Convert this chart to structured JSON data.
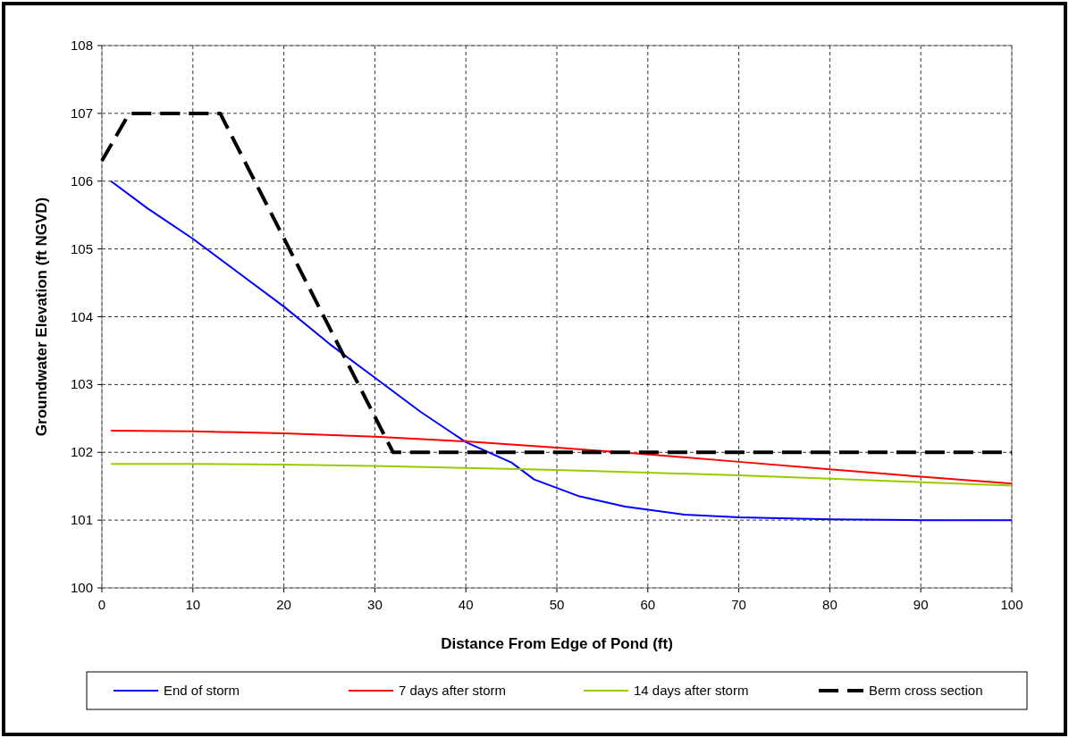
{
  "chart_data": {
    "type": "line",
    "xlabel": "Distance From Edge of Pond (ft)",
    "ylabel": "Groundwater Elevation (ft NGVD)",
    "xlim": [
      0,
      100
    ],
    "xticks": [
      0,
      10,
      20,
      30,
      40,
      50,
      60,
      70,
      80,
      90,
      100
    ],
    "ylim": [
      100,
      108
    ],
    "yticks": [
      100,
      101,
      102,
      103,
      104,
      105,
      106,
      107,
      108
    ],
    "grid": true,
    "legend": "bottom",
    "marker": "none",
    "series": [
      {
        "name": "End of storm",
        "color": "#0000ff",
        "x": [
          1,
          5,
          10,
          15,
          20,
          25,
          30,
          35,
          40,
          45,
          47.5,
          52.5,
          57.5,
          64,
          70,
          80,
          90,
          100
        ],
        "values": [
          106,
          105.6,
          105.15,
          104.65,
          104.15,
          103.6,
          103.1,
          102.6,
          102.15,
          101.85,
          101.6,
          101.35,
          101.2,
          101.08,
          101.04,
          101.01,
          101,
          101
        ]
      },
      {
        "name": "7 days after storm",
        "color": "#ff0000",
        "x": [
          1,
          10,
          20,
          30,
          40,
          50,
          60,
          70,
          80,
          90,
          100
        ],
        "values": [
          102.32,
          102.31,
          102.28,
          102.23,
          102.16,
          102.07,
          101.97,
          101.86,
          101.75,
          101.64,
          101.54
        ]
      },
      {
        "name": "14 days after storm",
        "color": "#99cc00",
        "x": [
          1,
          10,
          20,
          30,
          40,
          50,
          60,
          70,
          80,
          90,
          100
        ],
        "values": [
          101.83,
          101.83,
          101.82,
          101.8,
          101.77,
          101.74,
          101.7,
          101.66,
          101.61,
          101.56,
          101.51
        ]
      },
      {
        "name": "Berm cross section",
        "color": "#000000",
        "line_style": "dashed",
        "x": [
          0,
          3,
          13,
          32,
          100
        ],
        "values": [
          106.3,
          107,
          107,
          102,
          102
        ]
      }
    ]
  }
}
